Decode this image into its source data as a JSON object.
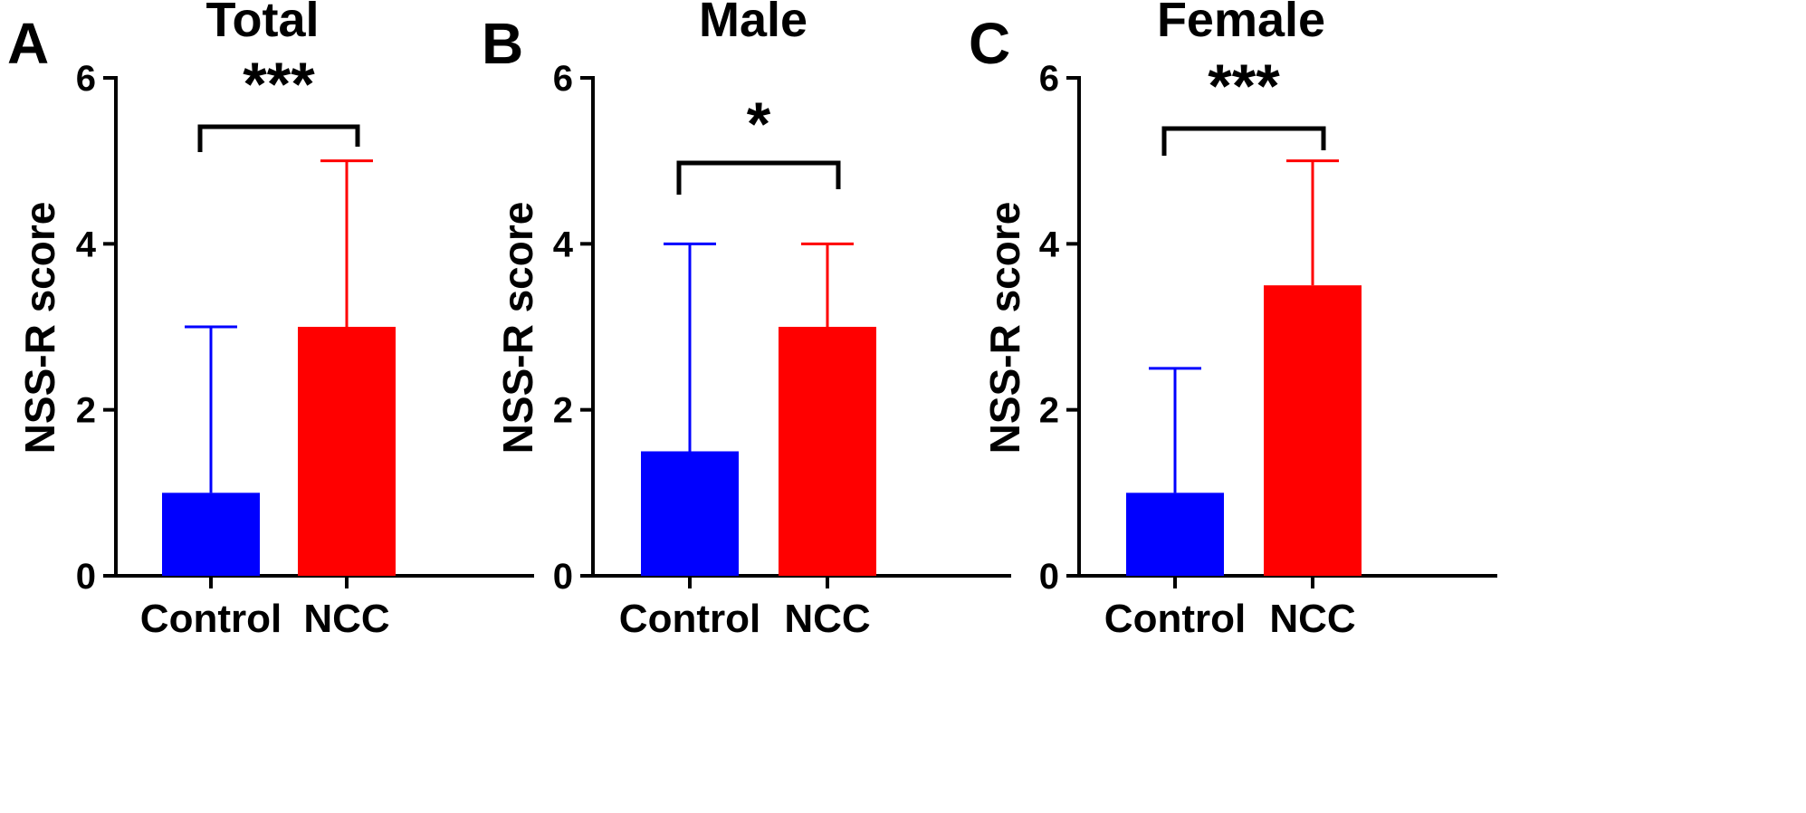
{
  "chart_data": [
    {
      "type": "bar",
      "panel": "A",
      "title": "Total",
      "ylabel": "NSS-R score",
      "xlabel": "",
      "ylim": [
        0,
        6
      ],
      "yticks": [
        0,
        2,
        4,
        6
      ],
      "categories": [
        "Control",
        "NCC"
      ],
      "values": [
        1,
        3
      ],
      "error_upper": [
        3,
        5
      ],
      "colors": [
        "#0000ff",
        "#ff0000"
      ],
      "significance": "***"
    },
    {
      "type": "bar",
      "panel": "B",
      "title": "Male",
      "ylabel": "NSS-R score",
      "xlabel": "",
      "ylim": [
        0,
        6
      ],
      "yticks": [
        0,
        2,
        4,
        6
      ],
      "categories": [
        "Control",
        "NCC"
      ],
      "values": [
        1.5,
        3
      ],
      "error_upper": [
        4,
        4
      ],
      "colors": [
        "#0000ff",
        "#ff0000"
      ],
      "significance": "*"
    },
    {
      "type": "bar",
      "panel": "C",
      "title": "Female",
      "ylabel": "NSS-R score",
      "xlabel": "",
      "ylim": [
        0,
        6
      ],
      "yticks": [
        0,
        2,
        4,
        6
      ],
      "categories": [
        "Control",
        "NCC"
      ],
      "values": [
        1,
        3.5
      ],
      "error_upper": [
        2.5,
        5
      ],
      "colors": [
        "#0000ff",
        "#ff0000"
      ],
      "significance": "***"
    }
  ]
}
